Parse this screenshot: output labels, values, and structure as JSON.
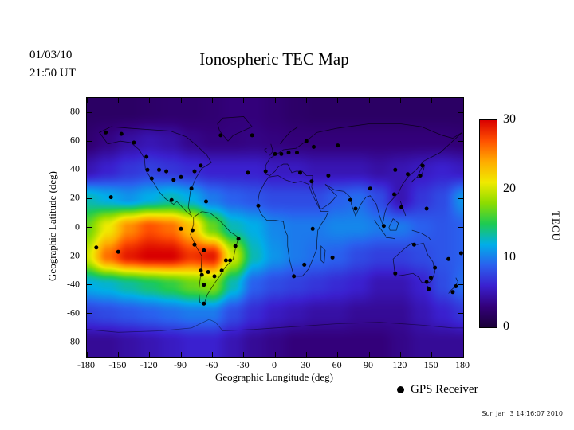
{
  "header": {
    "date_line1": "01/03/10",
    "date_line2": "21:50 UT"
  },
  "footer": {
    "timestamp": "Sun Jan  3 14:16:07 2010"
  },
  "chart_data": {
    "type": "heatmap",
    "title": "Ionospheric TEC Map",
    "xlabel": "Geographic Longitude (deg)",
    "ylabel": "Geographic Latitude (deg)",
    "colorbar_label": "TECU",
    "point_legend": "GPS Receiver",
    "x_ticks": [
      -180,
      -150,
      -120,
      -90,
      -60,
      -30,
      0,
      30,
      60,
      90,
      120,
      150,
      180
    ],
    "y_ticks": [
      80,
      60,
      40,
      20,
      0,
      -20,
      -40,
      -60,
      -80
    ],
    "colorbar_ticks": [
      0,
      10,
      20,
      30
    ],
    "lon_range": [
      -180,
      180
    ],
    "lat_range": [
      -90,
      90
    ],
    "value_range": [
      0,
      30
    ],
    "grid_lons": [
      -180,
      -160,
      -140,
      -120,
      -100,
      -80,
      -60,
      -40,
      -20,
      0,
      20,
      40,
      60,
      80,
      100,
      120,
      140,
      160,
      180
    ],
    "grid_lats": [
      80,
      60,
      40,
      20,
      0,
      -20,
      -40,
      -60,
      -80
    ],
    "tec_grid": [
      [
        2,
        2,
        2,
        2.2,
        2.4,
        2.4,
        2.6,
        3,
        3,
        2.6,
        2.2,
        2,
        2,
        2,
        2,
        2,
        2,
        2,
        2
      ],
      [
        2.6,
        3.4,
        4.4,
        5,
        4.6,
        3.6,
        3.2,
        3.2,
        3.4,
        3.2,
        3,
        3,
        3,
        3,
        3,
        3,
        3,
        3,
        2.8
      ],
      [
        5,
        6,
        7,
        7.5,
        7,
        6.5,
        6,
        6,
        6,
        5.5,
        5.5,
        5,
        5,
        5,
        4.5,
        5,
        5.5,
        6,
        5.5
      ],
      [
        13,
        12,
        11,
        12,
        13,
        12,
        10,
        9,
        8.5,
        8,
        8,
        8,
        9,
        9.5,
        8,
        5,
        7,
        8,
        11
      ],
      [
        17,
        21,
        25,
        27,
        26,
        23,
        17,
        13,
        12,
        10.5,
        10,
        10,
        10.5,
        10.5,
        10,
        10,
        9,
        8.5,
        9
      ],
      [
        20,
        26,
        29,
        30,
        30,
        28,
        29,
        20,
        13,
        11,
        10,
        9.5,
        9,
        8,
        7.5,
        7.5,
        8,
        8.5,
        9
      ],
      [
        12,
        12.5,
        13.5,
        14.5,
        15.5,
        17,
        18,
        13,
        9,
        8,
        7.5,
        7,
        6.5,
        6,
        5,
        5,
        6,
        8,
        9.5
      ],
      [
        7.5,
        8,
        8.5,
        9,
        9.5,
        10,
        10,
        8,
        6.5,
        5.5,
        5,
        4.5,
        4.5,
        4,
        4,
        4,
        5,
        6,
        7
      ],
      [
        4,
        4,
        4.5,
        5,
        5.5,
        6,
        6,
        5,
        4,
        3.5,
        3,
        3,
        3,
        3,
        3,
        3.5,
        4,
        4,
        4
      ]
    ],
    "colormap": [
      {
        "value": 0,
        "color": "#1b0038"
      },
      {
        "value": 3,
        "color": "#33007a"
      },
      {
        "value": 6,
        "color": "#3a20cf"
      },
      {
        "value": 9,
        "color": "#2a60ee"
      },
      {
        "value": 12,
        "color": "#00aee8"
      },
      {
        "value": 15,
        "color": "#1ecb52"
      },
      {
        "value": 18,
        "color": "#8ddc00"
      },
      {
        "value": 21,
        "color": "#f0ea00"
      },
      {
        "value": 24,
        "color": "#ffab00"
      },
      {
        "value": 27,
        "color": "#ff5100"
      },
      {
        "value": 30,
        "color": "#d90000"
      }
    ],
    "gps_receivers": [
      [
        -162,
        66
      ],
      [
        -147,
        65
      ],
      [
        -135,
        59
      ],
      [
        -123,
        49
      ],
      [
        -122,
        40
      ],
      [
        -118,
        34
      ],
      [
        -111,
        40
      ],
      [
        -104,
        39
      ],
      [
        -97,
        33
      ],
      [
        -90,
        35
      ],
      [
        -80,
        27
      ],
      [
        -77,
        39
      ],
      [
        -71,
        43
      ],
      [
        -52,
        64
      ],
      [
        -22,
        64
      ],
      [
        -26,
        38
      ],
      [
        -157,
        21
      ],
      [
        -171,
        -14
      ],
      [
        -150,
        -17
      ],
      [
        -99,
        19
      ],
      [
        -66,
        18
      ],
      [
        -90,
        -1
      ],
      [
        -79,
        -2
      ],
      [
        -77,
        -12
      ],
      [
        -68,
        -16
      ],
      [
        -71,
        -30
      ],
      [
        -70,
        -33
      ],
      [
        -64,
        -31
      ],
      [
        -58,
        -34
      ],
      [
        -51,
        -30
      ],
      [
        -47,
        -23
      ],
      [
        -43,
        -23
      ],
      [
        -38,
        -13
      ],
      [
        -35,
        -8
      ],
      [
        -68,
        -40
      ],
      [
        -68,
        -53
      ],
      [
        -9,
        39
      ],
      [
        0,
        51
      ],
      [
        6,
        51
      ],
      [
        13,
        52
      ],
      [
        21,
        52
      ],
      [
        30,
        60
      ],
      [
        37,
        56
      ],
      [
        24,
        38
      ],
      [
        -16,
        15
      ],
      [
        36,
        -1
      ],
      [
        28,
        -26
      ],
      [
        18,
        -34
      ],
      [
        35,
        32
      ],
      [
        51,
        36
      ],
      [
        60,
        57
      ],
      [
        72,
        19
      ],
      [
        77,
        13
      ],
      [
        91,
        27
      ],
      [
        104,
        1
      ],
      [
        114,
        23
      ],
      [
        121,
        14
      ],
      [
        127,
        37
      ],
      [
        139,
        36
      ],
      [
        141,
        43
      ],
      [
        115,
        40
      ],
      [
        55,
        -21
      ],
      [
        115,
        -32
      ],
      [
        133,
        -12
      ],
      [
        149,
        -35
      ],
      [
        153,
        -28
      ],
      [
        145,
        -38
      ],
      [
        147,
        -43
      ],
      [
        173,
        -41
      ],
      [
        170,
        -45
      ],
      [
        166,
        -22
      ],
      [
        178,
        -18
      ],
      [
        145,
        13
      ]
    ]
  }
}
